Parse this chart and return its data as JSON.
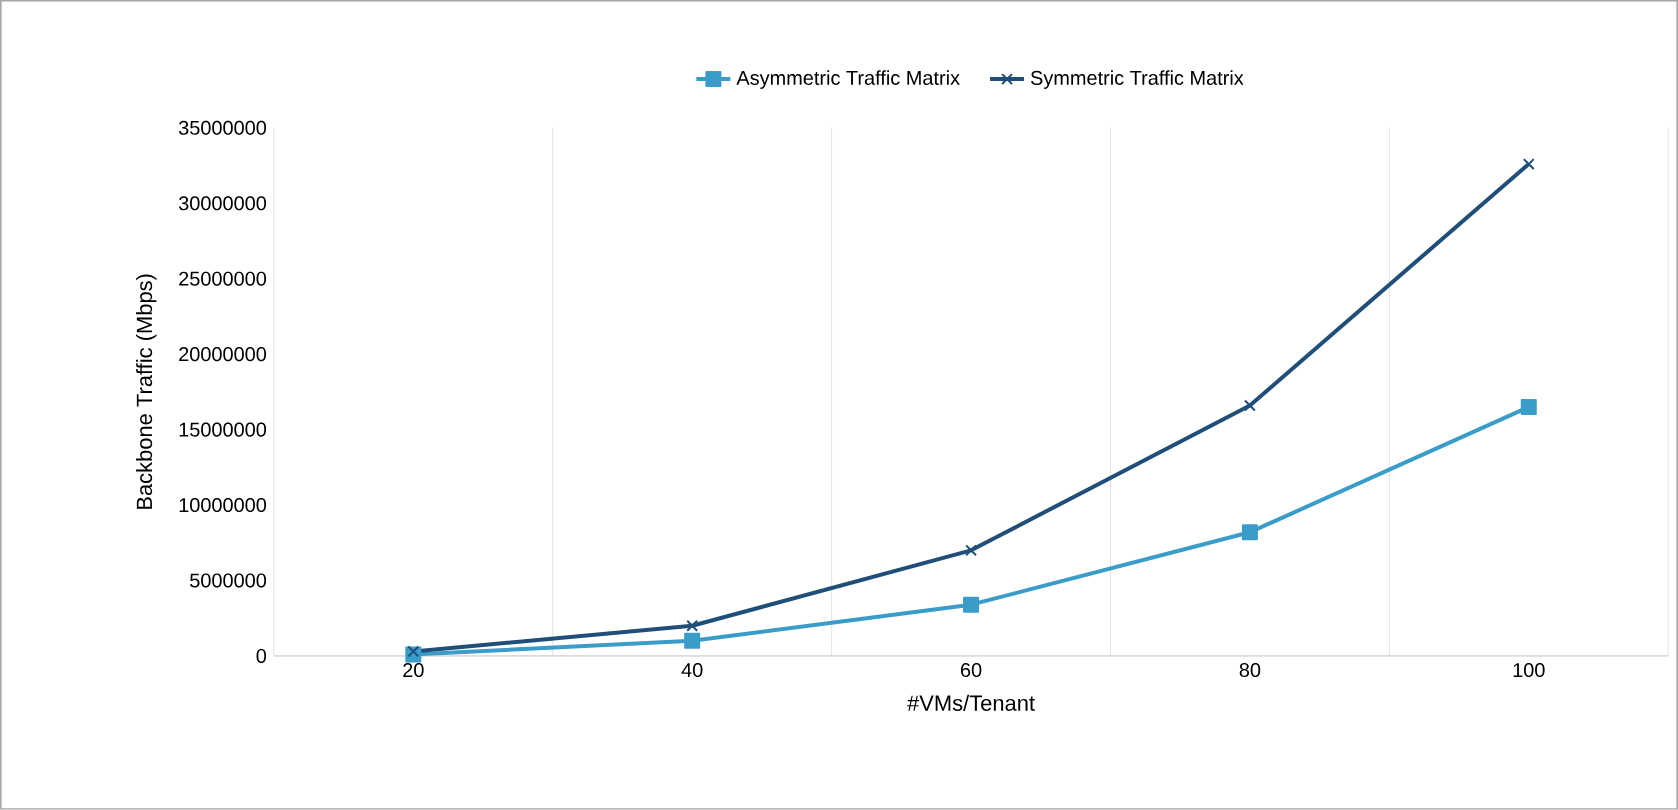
{
  "chart_data": {
    "type": "line",
    "xlabel": "#VMs/Tenant",
    "ylabel": "Backbone Traffic (Mbps)",
    "categories": [
      "20",
      "40",
      "60",
      "80",
      "100"
    ],
    "series": [
      {
        "name": "Asymmetric Traffic Matrix",
        "color": "#3a9cc8",
        "marker": "square",
        "values": [
          100000,
          1000000,
          3400000,
          8200000,
          16500000
        ]
      },
      {
        "name": "Symmetric Traffic Matrix",
        "color": "#1f4e79",
        "marker": "cross",
        "values": [
          300000,
          2000000,
          7000000,
          16600000,
          32600000
        ]
      }
    ],
    "ylim": [
      0,
      35000000
    ],
    "yticks": [
      0,
      5000000,
      10000000,
      15000000,
      20000000,
      25000000,
      30000000,
      35000000
    ],
    "grid": "x",
    "legend": "top"
  }
}
